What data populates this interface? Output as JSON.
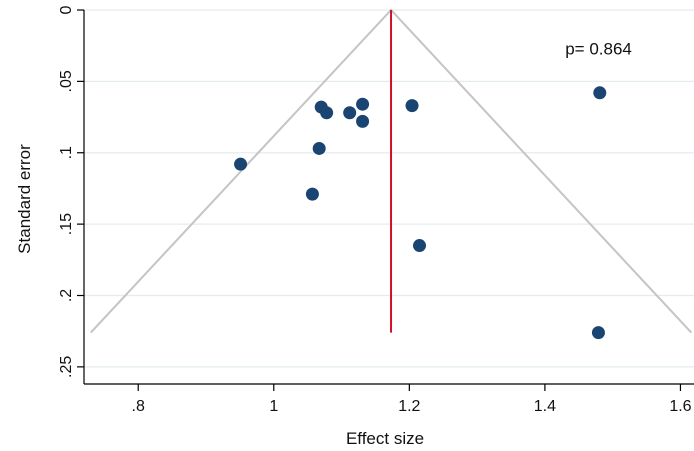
{
  "chart_data": {
    "type": "scatter",
    "title": "",
    "xlabel": "Effect size",
    "ylabel": "Standard error",
    "xlim": [
      0.72,
      1.62
    ],
    "ylim": [
      0,
      0.262
    ],
    "y_reversed": true,
    "grid": "horizontal",
    "x_ticks": [
      {
        "value": 0.8,
        "label": ".8"
      },
      {
        "value": 1.0,
        "label": "1"
      },
      {
        "value": 1.2,
        "label": "1.2"
      },
      {
        "value": 1.4,
        "label": "1.4"
      },
      {
        "value": 1.6,
        "label": "1.6"
      }
    ],
    "y_ticks": [
      {
        "value": 0,
        "label": "0"
      },
      {
        "value": 0.05,
        "label": ".05"
      },
      {
        "value": 0.1,
        "label": ".1"
      },
      {
        "value": 0.15,
        "label": ".15"
      },
      {
        "value": 0.2,
        "label": ".2"
      },
      {
        "value": 0.25,
        "label": ".25"
      }
    ],
    "points": [
      {
        "x": 0.951,
        "y": 0.108
      },
      {
        "x": 1.057,
        "y": 0.129
      },
      {
        "x": 1.067,
        "y": 0.097
      },
      {
        "x": 1.07,
        "y": 0.068
      },
      {
        "x": 1.078,
        "y": 0.072
      },
      {
        "x": 1.112,
        "y": 0.072
      },
      {
        "x": 1.131,
        "y": 0.066
      },
      {
        "x": 1.131,
        "y": 0.078
      },
      {
        "x": 1.204,
        "y": 0.067
      },
      {
        "x": 1.215,
        "y": 0.165
      },
      {
        "x": 1.481,
        "y": 0.058
      },
      {
        "x": 1.479,
        "y": 0.226
      }
    ],
    "pooled_effect": 1.173,
    "funnel": {
      "apex": [
        1.173,
        0
      ],
      "left_base": [
        0.73,
        0.226
      ],
      "right_base": [
        1.616,
        0.226
      ]
    },
    "pooled_line_extent": [
      0,
      0.226
    ],
    "annotation": {
      "text": "p= 0.864",
      "x": 1.43,
      "y": 0.027
    },
    "colors": {
      "points": "#1a4472",
      "pooled_line": "#d0102a",
      "funnel": "#c4c4c4",
      "grid": "#e4ecef",
      "axis": "#000000"
    }
  }
}
